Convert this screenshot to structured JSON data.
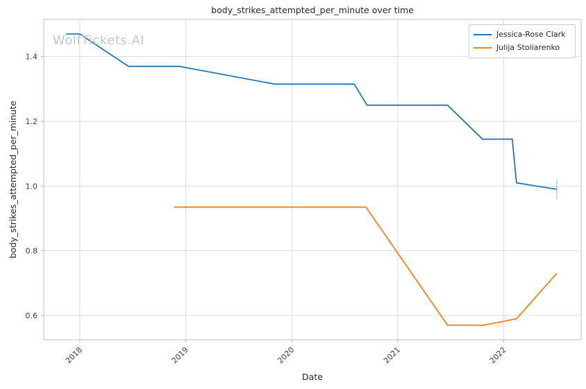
{
  "title": "body_strikes_attempted_per_minute over time",
  "watermark": "WolfTickets.AI",
  "chart_data": {
    "type": "line",
    "title": "body_strikes_attempted_per_minute over time",
    "xlabel": "Date",
    "ylabel": "body_strikes_attempted_per_minute",
    "xlim": [
      2017.66,
      2022.73
    ],
    "ylim": [
      0.525,
      1.515
    ],
    "x_ticks": [
      2018,
      2019,
      2020,
      2021,
      2022
    ],
    "y_ticks": [
      0.6,
      0.8,
      1.0,
      1.2,
      1.4
    ],
    "grid": true,
    "legend_position": "upper right",
    "series": [
      {
        "name": "Jessica-Rose Clark",
        "color": "#1f77b4",
        "end_marker": "vline",
        "points": [
          [
            2017.87,
            1.47
          ],
          [
            2018.0,
            1.47
          ],
          [
            2018.46,
            1.37
          ],
          [
            2018.94,
            1.37
          ],
          [
            2019.84,
            1.315
          ],
          [
            2020.59,
            1.315
          ],
          [
            2020.71,
            1.25
          ],
          [
            2021.47,
            1.25
          ],
          [
            2021.8,
            1.145
          ],
          [
            2022.08,
            1.145
          ],
          [
            2022.12,
            1.01
          ],
          [
            2022.5,
            0.99
          ]
        ]
      },
      {
        "name": "Julija Stoliarenko",
        "color": "#ff7f0e",
        "end_marker": "none",
        "points": [
          [
            2018.89,
            0.935
          ],
          [
            2020.7,
            0.935
          ],
          [
            2021.47,
            0.57
          ],
          [
            2021.81,
            0.57
          ],
          [
            2022.12,
            0.59
          ],
          [
            2022.5,
            0.73
          ]
        ]
      }
    ]
  },
  "colors": {
    "grid": "#dcdcdc",
    "spine": "#c9c9c9",
    "tick_mark": "#b0b0b0",
    "tick_text": "#3b3b3b",
    "title_text": "#262626",
    "watermark": "#c6c6c6",
    "legend_border": "#cccccc"
  }
}
